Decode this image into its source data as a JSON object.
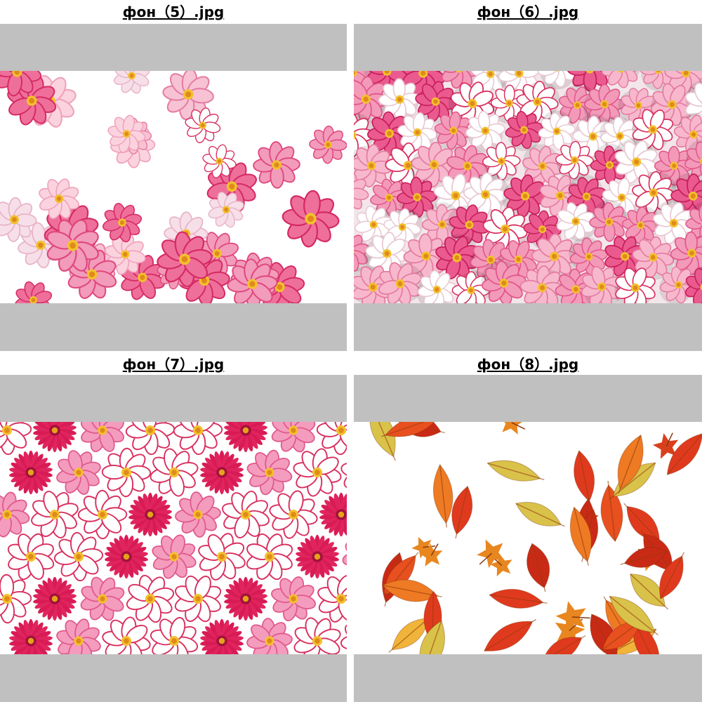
{
  "tiles": [
    {
      "filename": "фон（5）.jpg",
      "thumbnail": "pink-cosmos-flowers-sparse-white-background"
    },
    {
      "filename": "фон（6）.jpg",
      "thumbnail": "pink-and-white-cosmos-flowers-dense"
    },
    {
      "filename": "фон（7）.jpg",
      "thumbnail": "pink-cosmos-and-red-gerbera-pattern"
    },
    {
      "filename": "фон（8）.jpg",
      "thumbnail": "autumn-red-orange-yellow-leaves"
    }
  ],
  "colors": {
    "frame": "#c0c0c0",
    "page": "#ffffff",
    "text": "#000000"
  }
}
